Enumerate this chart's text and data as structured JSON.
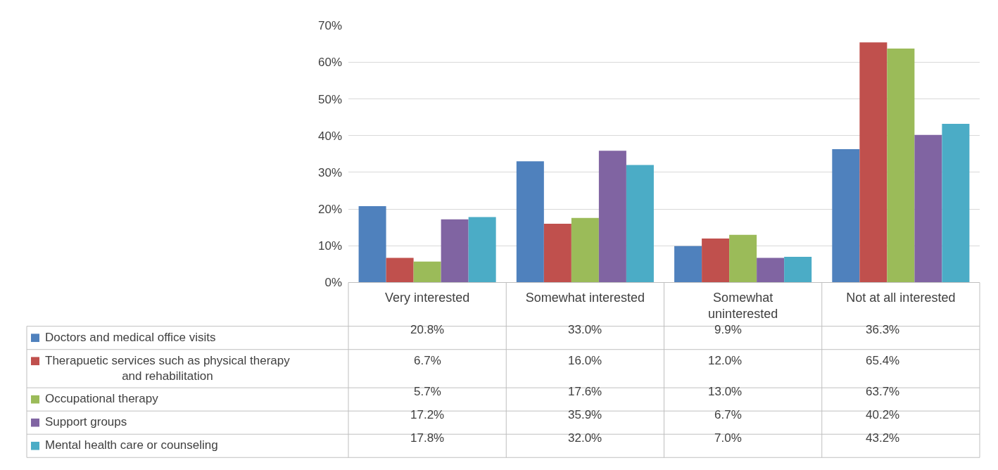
{
  "chart_data": {
    "type": "bar",
    "categories": [
      "Very interested",
      "Somewhat interested",
      "Somewhat uninterested",
      "Not at all interested"
    ],
    "series": [
      {
        "name": "Doctors and medical office visits",
        "color": "#4f81bd",
        "values": [
          20.8,
          33.0,
          9.9,
          36.3
        ],
        "value_labels": [
          "20.8%",
          "33.0%",
          "9.9%",
          "36.3%"
        ]
      },
      {
        "name": "Therapuetic services such as physical therapy and rehabilitation",
        "color": "#c0504d",
        "values": [
          6.7,
          16.0,
          12.0,
          65.4
        ],
        "value_labels": [
          "6.7%",
          "16.0%",
          "12.0%",
          "65.4%"
        ]
      },
      {
        "name": "Occupational therapy",
        "color": "#9bbb59",
        "values": [
          5.7,
          17.6,
          13.0,
          63.7
        ],
        "value_labels": [
          "5.7%",
          "17.6%",
          "13.0%",
          "63.7%"
        ]
      },
      {
        "name": "Support groups",
        "color": "#8064a2",
        "values": [
          17.2,
          35.9,
          6.7,
          40.2
        ],
        "value_labels": [
          "17.2%",
          "35.9%",
          "6.7%",
          "40.2%"
        ]
      },
      {
        "name": "Mental health care or counseling",
        "color": "#4bacc6",
        "values": [
          17.8,
          32.0,
          7.0,
          43.2
        ],
        "value_labels": [
          "17.8%",
          "32.0%",
          "7.0%",
          "43.2%"
        ]
      }
    ],
    "ylim": [
      0,
      70
    ],
    "yticks": [
      {
        "value": 0,
        "label": "0%"
      },
      {
        "value": 10,
        "label": "10%"
      },
      {
        "value": 20,
        "label": "20%"
      },
      {
        "value": 30,
        "label": "30%"
      },
      {
        "value": 40,
        "label": "40%"
      },
      {
        "value": 50,
        "label": "50%"
      },
      {
        "value": 60,
        "label": "60%"
      },
      {
        "value": 70,
        "label": "70%"
      }
    ],
    "grid": "y",
    "legend": "bottom left"
  }
}
